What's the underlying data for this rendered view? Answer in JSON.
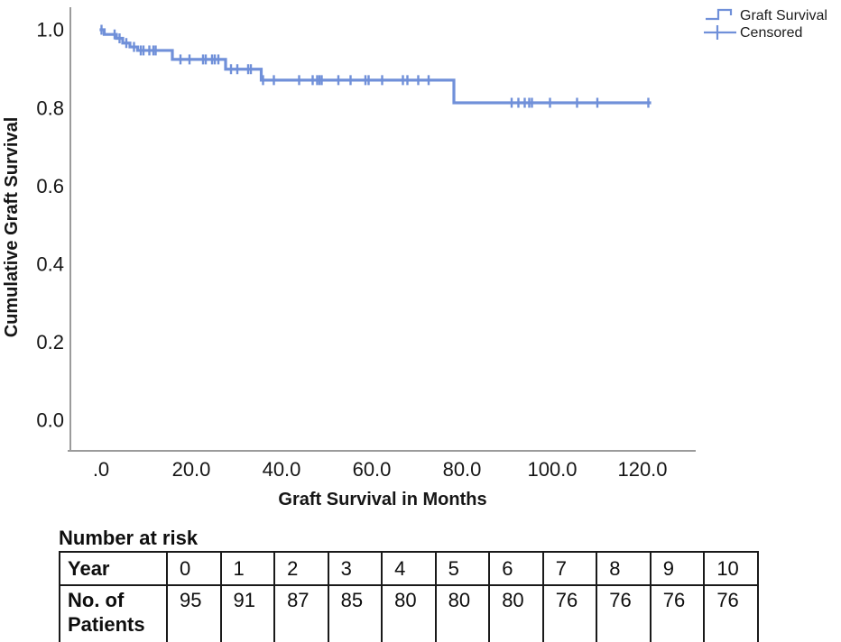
{
  "chart_data": {
    "type": "line",
    "subtype": "kaplan_meier_step_function",
    "title": "",
    "xlabel": "Graft Survival in Months",
    "ylabel": "Cumulative Graft Survival",
    "xlim": [
      0,
      130
    ],
    "ylim": [
      0.0,
      1.0
    ],
    "grid": "off",
    "legend_position": "top-right",
    "line_color": "#7090D9",
    "axis_color": "#9B9B9B",
    "x_ticks": {
      "values": [
        0,
        20,
        40,
        60,
        80,
        100,
        120
      ],
      "labels": [
        ".0",
        "20.0",
        "40.0",
        "60.0",
        "80.0",
        "100.0",
        "120.0"
      ]
    },
    "y_ticks": {
      "values": [
        0.0,
        0.2,
        0.4,
        0.6,
        0.8,
        1.0
      ],
      "labels": [
        "0.0",
        "0.2",
        "0.4",
        "0.6",
        "0.8",
        "1.0"
      ]
    },
    "legend": [
      {
        "label": "Graft Survival",
        "marker": "step-line"
      },
      {
        "label": "Censored",
        "marker": "plus"
      }
    ],
    "series": [
      {
        "name": "Graft Survival",
        "steps": [
          [
            0.0,
            1.0
          ],
          [
            0.7,
            0.988
          ],
          [
            3.4,
            0.978
          ],
          [
            4.8,
            0.966
          ],
          [
            6.4,
            0.956
          ],
          [
            8.1,
            0.947
          ],
          [
            15.8,
            0.924
          ],
          [
            27.6,
            0.899
          ],
          [
            35.5,
            0.871
          ],
          [
            78.2,
            0.813
          ]
        ],
        "end_time": 121.6,
        "censored_times": [
          0.1,
          3.0,
          4.1,
          5.6,
          7.3,
          8.8,
          9.4,
          10.7,
          11.6,
          12.1,
          17.6,
          19.6,
          22.6,
          23.2,
          24.6,
          25.2,
          26.0,
          28.8,
          30.2,
          32.6,
          33.2,
          35.9,
          38.3,
          43.9,
          46.9,
          47.9,
          48.4,
          48.9,
          52.6,
          55.3,
          58.6,
          59.3,
          62.3,
          66.9,
          67.9,
          70.3,
          72.6,
          91.0,
          92.5,
          93.9,
          94.9,
          95.5,
          99.5,
          105.5,
          110.0,
          121.3
        ]
      }
    ]
  },
  "risk_table": {
    "title": "Number at risk",
    "row1_header": "Year",
    "row2_header": "No. of Patients",
    "years": [
      "0",
      "1",
      "2",
      "3",
      "4",
      "5",
      "6",
      "7",
      "8",
      "9",
      "10"
    ],
    "patients": [
      "95",
      "91",
      "87",
      "85",
      "80",
      "80",
      "80",
      "76",
      "76",
      "76",
      "76"
    ]
  }
}
